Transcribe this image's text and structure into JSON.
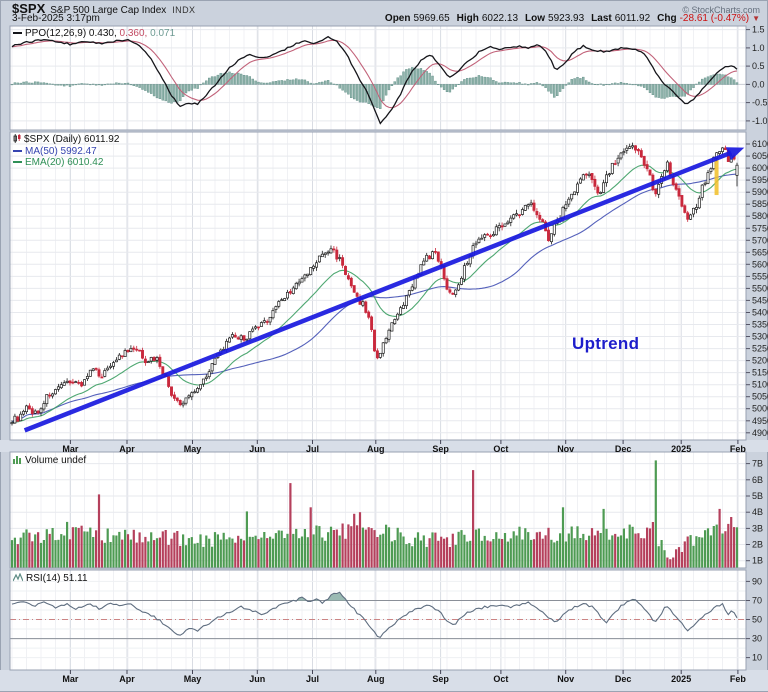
{
  "header": {
    "symbol": "$SPX",
    "name": "S&P 500 Large Cap Index",
    "exchange": "INDX",
    "datetime": "3-Feb-2025 3:17pm",
    "credit": "© StockCharts.com",
    "quote": {
      "open_label": "Open",
      "open": "5969.65",
      "high_label": "High",
      "high": "6022.13",
      "low_label": "Low",
      "low": "5923.93",
      "last_label": "Last",
      "last": "6011.92",
      "chg_label": "Chg",
      "chg": "-28.61 (-0.47%)",
      "chg_dir": "▼"
    }
  },
  "legends": {
    "ppo": {
      "text1": "PPO(12,26,9) 0.430,",
      "text2": "0.360,",
      "text3": "0.071"
    },
    "price": {
      "line1": "$SPX (Daily) 6011.92",
      "line2": "MA(50) 5992.47",
      "line3": "EMA(20) 6010.42"
    },
    "volume": {
      "text": "Volume undef"
    },
    "rsi": {
      "text": "RSI(14) 51.11"
    }
  },
  "annotation": {
    "uptrend": "Uptrend"
  },
  "colors": {
    "page_bg": "#cbd2dd",
    "strip_bg": "#d8dee8",
    "plot_bg": "#ffffff",
    "panel_border": "#98a1b2",
    "grid_minor": "#f0f1f4",
    "grid_month": "#d9dce3",
    "grid_h": "#e7e9ee",
    "candle_up": "#1c1c1c",
    "candle_up_fill": "#ffffff",
    "candle_down": "#c9283c",
    "ma50": "#4350b4",
    "ema20": "#3c9e63",
    "ppo_line": "#15151a",
    "ppo_signal": "#c2637a",
    "ppo_hist_fill": "#8fb3ab",
    "ppo_hist_stroke": "#5d8b84",
    "vol_up": "#4e9b53",
    "vol_down": "#b5405c",
    "rsi_line": "#5f6e80",
    "rsi_fill": "#8fb3ab",
    "rsi_level": "#8a8f98",
    "rsi_mid": "#cc8484",
    "trend_blue": "#1a1adf",
    "uptrend_text": "#1d1dcb",
    "highlight_yellow": "#f2c12e",
    "axis_text": "#222222",
    "chg_red": "#cc1111"
  },
  "x_axis_months": [
    {
      "label": "Mar",
      "f": 0.082
    },
    {
      "label": "Apr",
      "f": 0.159
    },
    {
      "label": "May",
      "f": 0.248
    },
    {
      "label": "Jun",
      "f": 0.336
    },
    {
      "label": "Jul",
      "f": 0.411
    },
    {
      "label": "Aug",
      "f": 0.497
    },
    {
      "label": "Sep",
      "f": 0.585
    },
    {
      "label": "Oct",
      "f": 0.667
    },
    {
      "label": "Nov",
      "f": 0.755
    },
    {
      "label": "Dec",
      "f": 0.833
    },
    {
      "label": "2025",
      "f": 0.912,
      "bold": true
    },
    {
      "label": "Feb",
      "f": 0.989
    }
  ],
  "chart_data": [
    {
      "id": "ppo",
      "type": "line",
      "title": "PPO (12,26,9)",
      "ylim": [
        -1.25,
        1.6
      ],
      "yticks": [
        1.5,
        1.0,
        0.5,
        0.0,
        -0.5,
        -1.0
      ],
      "last_values": {
        "ppo": 0.43,
        "signal": 0.36,
        "histogram": 0.071
      },
      "anchors": [
        [
          0.0,
          1.05
        ],
        [
          0.02,
          1.15
        ],
        [
          0.04,
          1.22
        ],
        [
          0.06,
          1.18
        ],
        [
          0.08,
          1.1
        ],
        [
          0.1,
          1.18
        ],
        [
          0.12,
          1.12
        ],
        [
          0.14,
          1.18
        ],
        [
          0.16,
          1.22
        ],
        [
          0.175,
          1.1
        ],
        [
          0.19,
          0.75
        ],
        [
          0.205,
          0.25
        ],
        [
          0.22,
          -0.3
        ],
        [
          0.232,
          -0.62
        ],
        [
          0.245,
          -0.5
        ],
        [
          0.255,
          -0.55
        ],
        [
          0.27,
          -0.25
        ],
        [
          0.285,
          0.1
        ],
        [
          0.3,
          0.45
        ],
        [
          0.315,
          0.7
        ],
        [
          0.33,
          0.82
        ],
        [
          0.345,
          0.72
        ],
        [
          0.36,
          0.8
        ],
        [
          0.375,
          0.95
        ],
        [
          0.39,
          1.1
        ],
        [
          0.405,
          1.18
        ],
        [
          0.42,
          1.12
        ],
        [
          0.435,
          1.3
        ],
        [
          0.45,
          1.15
        ],
        [
          0.462,
          0.8
        ],
        [
          0.475,
          0.3
        ],
        [
          0.488,
          -0.15
        ],
        [
          0.5,
          -0.7
        ],
        [
          0.508,
          -1.05
        ],
        [
          0.52,
          -0.8
        ],
        [
          0.535,
          -0.3
        ],
        [
          0.55,
          0.3
        ],
        [
          0.565,
          0.68
        ],
        [
          0.578,
          0.8
        ],
        [
          0.59,
          0.55
        ],
        [
          0.602,
          0.2
        ],
        [
          0.615,
          0.35
        ],
        [
          0.63,
          0.65
        ],
        [
          0.645,
          0.9
        ],
        [
          0.66,
          1.05
        ],
        [
          0.672,
          0.95
        ],
        [
          0.685,
          1.0
        ],
        [
          0.7,
          1.05
        ],
        [
          0.712,
          0.98
        ],
        [
          0.725,
          1.1
        ],
        [
          0.738,
          0.85
        ],
        [
          0.75,
          0.4
        ],
        [
          0.762,
          0.55
        ],
        [
          0.775,
          0.9
        ],
        [
          0.788,
          1.05
        ],
        [
          0.8,
          0.95
        ],
        [
          0.815,
          0.9
        ],
        [
          0.83,
          0.95
        ],
        [
          0.845,
          1.02
        ],
        [
          0.858,
          0.95
        ],
        [
          0.87,
          0.88
        ],
        [
          0.88,
          0.6
        ],
        [
          0.89,
          0.25
        ],
        [
          0.9,
          0.0
        ],
        [
          0.91,
          -0.15
        ],
        [
          0.92,
          -0.35
        ],
        [
          0.93,
          -0.55
        ],
        [
          0.94,
          -0.4
        ],
        [
          0.95,
          -0.2
        ],
        [
          0.96,
          0.05
        ],
        [
          0.972,
          0.3
        ],
        [
          0.982,
          0.48
        ],
        [
          0.99,
          0.52
        ],
        [
          1.0,
          0.43
        ]
      ]
    },
    {
      "id": "price",
      "type": "candlestick",
      "title": "$SPX Daily",
      "ylim": [
        4870,
        6150
      ],
      "yticks": [
        6100,
        6050,
        6000,
        5950,
        5900,
        5850,
        5800,
        5750,
        5700,
        5650,
        5600,
        5550,
        5500,
        5450,
        5400,
        5350,
        5300,
        5250,
        5200,
        5150,
        5100,
        5050,
        5000,
        4950,
        4900
      ],
      "overlays": [
        {
          "name": "MA(50)",
          "last": 5992.47
        },
        {
          "name": "EMA(20)",
          "last": 6010.42
        }
      ],
      "last_ohlc": {
        "open": 5969.65,
        "high": 6022.13,
        "low": 5923.93,
        "close": 6011.92,
        "change": -28.61,
        "change_pct": -0.47
      },
      "close_anchors": [
        [
          0.0,
          4955
        ],
        [
          0.01,
          4960
        ],
        [
          0.02,
          5000
        ],
        [
          0.035,
          4980
        ],
        [
          0.05,
          5060
        ],
        [
          0.065,
          5080
        ],
        [
          0.08,
          5120
        ],
        [
          0.095,
          5100
        ],
        [
          0.11,
          5160
        ],
        [
          0.125,
          5140
        ],
        [
          0.14,
          5200
        ],
        [
          0.155,
          5230
        ],
        [
          0.17,
          5250
        ],
        [
          0.185,
          5200
        ],
        [
          0.2,
          5210
        ],
        [
          0.21,
          5140
        ],
        [
          0.22,
          5060
        ],
        [
          0.232,
          5010
        ],
        [
          0.245,
          5060
        ],
        [
          0.26,
          5100
        ],
        [
          0.275,
          5180
        ],
        [
          0.29,
          5250
        ],
        [
          0.305,
          5300
        ],
        [
          0.32,
          5290
        ],
        [
          0.335,
          5330
        ],
        [
          0.35,
          5360
        ],
        [
          0.365,
          5430
        ],
        [
          0.38,
          5480
        ],
        [
          0.395,
          5520
        ],
        [
          0.41,
          5570
        ],
        [
          0.425,
          5630
        ],
        [
          0.44,
          5665
        ],
        [
          0.455,
          5610
        ],
        [
          0.465,
          5520
        ],
        [
          0.475,
          5460
        ],
        [
          0.485,
          5430
        ],
        [
          0.495,
          5350
        ],
        [
          0.503,
          5190
        ],
        [
          0.512,
          5280
        ],
        [
          0.525,
          5350
        ],
        [
          0.54,
          5430
        ],
        [
          0.555,
          5540
        ],
        [
          0.57,
          5620
        ],
        [
          0.582,
          5650
        ],
        [
          0.592,
          5600
        ],
        [
          0.602,
          5470
        ],
        [
          0.612,
          5500
        ],
        [
          0.625,
          5590
        ],
        [
          0.64,
          5700
        ],
        [
          0.655,
          5720
        ],
        [
          0.67,
          5750
        ],
        [
          0.685,
          5790
        ],
        [
          0.7,
          5810
        ],
        [
          0.715,
          5860
        ],
        [
          0.728,
          5800
        ],
        [
          0.74,
          5710
        ],
        [
          0.752,
          5780
        ],
        [
          0.765,
          5860
        ],
        [
          0.778,
          5920
        ],
        [
          0.79,
          5980
        ],
        [
          0.8,
          5950
        ],
        [
          0.81,
          5900
        ],
        [
          0.822,
          5980
        ],
        [
          0.835,
          6040
        ],
        [
          0.848,
          6070
        ],
        [
          0.858,
          6090
        ],
        [
          0.868,
          6050
        ],
        [
          0.878,
          5990
        ],
        [
          0.886,
          5880
        ],
        [
          0.895,
          5960
        ],
        [
          0.903,
          6030
        ],
        [
          0.912,
          5940
        ],
        [
          0.922,
          5870
        ],
        [
          0.932,
          5790
        ],
        [
          0.942,
          5830
        ],
        [
          0.952,
          5920
        ],
        [
          0.962,
          6000
        ],
        [
          0.972,
          6060
        ],
        [
          0.98,
          6090
        ],
        [
          0.988,
          6040
        ],
        [
          0.996,
          6045
        ],
        [
          1.0,
          6011.92
        ]
      ],
      "trendline": {
        "f1": 0.02,
        "price1": 4910,
        "f2": 0.985,
        "price2": 6070,
        "label": "Uptrend"
      },
      "highlight": {
        "f": 0.96,
        "price_top": 6035,
        "price_bottom": 5888
      }
    },
    {
      "id": "volume",
      "type": "bar",
      "title": "Volume",
      "yticks": [
        "7B",
        "6B",
        "5B",
        "4B",
        "3B",
        "2B",
        "1B"
      ],
      "unit": "B",
      "base_anchors": [
        [
          0.0,
          2.5
        ],
        [
          0.05,
          2.6
        ],
        [
          0.1,
          2.7
        ],
        [
          0.15,
          2.4
        ],
        [
          0.2,
          2.5
        ],
        [
          0.25,
          2.3
        ],
        [
          0.3,
          2.4
        ],
        [
          0.35,
          2.5
        ],
        [
          0.4,
          2.8
        ],
        [
          0.45,
          2.6
        ],
        [
          0.47,
          3.0
        ],
        [
          0.5,
          2.9
        ],
        [
          0.55,
          2.4
        ],
        [
          0.6,
          2.3
        ],
        [
          0.65,
          2.6
        ],
        [
          0.7,
          2.5
        ],
        [
          0.75,
          2.6
        ],
        [
          0.8,
          2.7
        ],
        [
          0.85,
          2.8
        ],
        [
          0.885,
          2.9
        ],
        [
          0.9,
          1.5
        ],
        [
          0.915,
          1.4
        ],
        [
          0.93,
          2.1
        ],
        [
          0.95,
          2.7
        ],
        [
          0.97,
          2.9
        ],
        [
          1.0,
          3.3
        ]
      ],
      "spikes": [
        [
          0.075,
          3.4,
          "up"
        ],
        [
          0.118,
          5.1,
          "down"
        ],
        [
          0.325,
          4.05,
          "up"
        ],
        [
          0.385,
          5.8,
          "down"
        ],
        [
          0.41,
          4.3,
          "down"
        ],
        [
          0.455,
          3.3,
          "down"
        ],
        [
          0.47,
          3.9,
          "down"
        ],
        [
          0.478,
          4.0,
          "down"
        ],
        [
          0.635,
          6.6,
          "down"
        ],
        [
          0.7,
          3.1,
          "up"
        ],
        [
          0.76,
          4.3,
          "up"
        ],
        [
          0.815,
          4.2,
          "up"
        ],
        [
          0.886,
          7.2,
          "up"
        ],
        [
          0.905,
          1.2,
          "down"
        ],
        [
          0.975,
          4.2,
          "down"
        ],
        [
          0.992,
          3.7,
          "down"
        ]
      ]
    },
    {
      "id": "rsi",
      "type": "line",
      "title": "RSI(14)",
      "last": 51.11,
      "yticks": [
        90,
        70,
        50,
        30,
        10
      ],
      "levels": {
        "overbought": 70,
        "oversold": 30,
        "mid": 50
      },
      "anchors": [
        [
          0.0,
          66
        ],
        [
          0.015,
          70
        ],
        [
          0.03,
          64
        ],
        [
          0.045,
          69
        ],
        [
          0.06,
          62
        ],
        [
          0.075,
          67
        ],
        [
          0.09,
          61
        ],
        [
          0.105,
          66
        ],
        [
          0.12,
          62
        ],
        [
          0.135,
          66
        ],
        [
          0.15,
          64
        ],
        [
          0.165,
          66
        ],
        [
          0.18,
          58
        ],
        [
          0.195,
          54
        ],
        [
          0.205,
          48
        ],
        [
          0.22,
          38
        ],
        [
          0.232,
          33
        ],
        [
          0.245,
          42
        ],
        [
          0.255,
          38
        ],
        [
          0.27,
          45
        ],
        [
          0.285,
          52
        ],
        [
          0.3,
          58
        ],
        [
          0.315,
          63
        ],
        [
          0.33,
          60
        ],
        [
          0.345,
          55
        ],
        [
          0.36,
          62
        ],
        [
          0.375,
          66
        ],
        [
          0.39,
          70
        ],
        [
          0.4,
          73
        ],
        [
          0.41,
          69
        ],
        [
          0.42,
          72
        ],
        [
          0.43,
          67
        ],
        [
          0.44,
          76
        ],
        [
          0.45,
          79
        ],
        [
          0.46,
          71
        ],
        [
          0.47,
          62
        ],
        [
          0.48,
          54
        ],
        [
          0.49,
          47
        ],
        [
          0.5,
          36
        ],
        [
          0.508,
          31
        ],
        [
          0.52,
          42
        ],
        [
          0.535,
          50
        ],
        [
          0.55,
          58
        ],
        [
          0.565,
          63
        ],
        [
          0.578,
          65
        ],
        [
          0.59,
          58
        ],
        [
          0.6,
          48
        ],
        [
          0.61,
          44
        ],
        [
          0.62,
          52
        ],
        [
          0.63,
          58
        ],
        [
          0.645,
          62
        ],
        [
          0.66,
          64
        ],
        [
          0.675,
          66
        ],
        [
          0.69,
          63
        ],
        [
          0.7,
          65
        ],
        [
          0.712,
          68
        ],
        [
          0.725,
          62
        ],
        [
          0.738,
          54
        ],
        [
          0.75,
          47
        ],
        [
          0.762,
          56
        ],
        [
          0.775,
          63
        ],
        [
          0.788,
          67
        ],
        [
          0.8,
          63
        ],
        [
          0.81,
          56
        ],
        [
          0.818,
          46
        ],
        [
          0.83,
          56
        ],
        [
          0.84,
          64
        ],
        [
          0.85,
          69
        ],
        [
          0.858,
          71
        ],
        [
          0.868,
          66
        ],
        [
          0.878,
          56
        ],
        [
          0.886,
          46
        ],
        [
          0.895,
          56
        ],
        [
          0.903,
          65
        ],
        [
          0.912,
          55
        ],
        [
          0.922,
          47
        ],
        [
          0.932,
          39
        ],
        [
          0.94,
          44
        ],
        [
          0.95,
          50
        ],
        [
          0.96,
          57
        ],
        [
          0.97,
          63
        ],
        [
          0.98,
          66
        ],
        [
          0.988,
          56
        ],
        [
          0.994,
          60
        ],
        [
          1.0,
          51.11
        ]
      ]
    }
  ]
}
